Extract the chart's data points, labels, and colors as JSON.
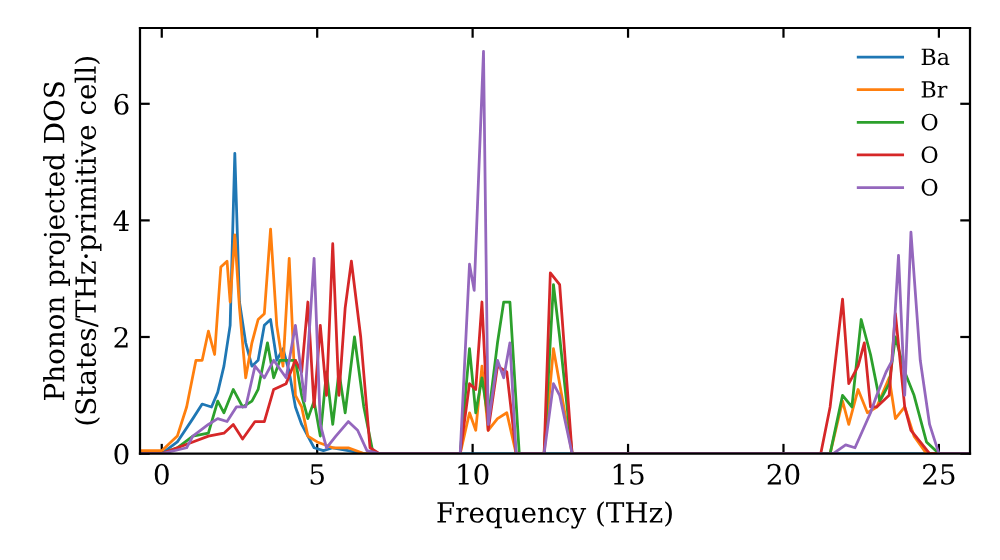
{
  "chart_data": {
    "type": "line",
    "xlabel": "Frequency (THz)",
    "ylabel": "Phonon projected DOS\n(States/THz·primitive cell)",
    "xlim": [
      -0.7,
      26
    ],
    "ylim": [
      0,
      7.3
    ],
    "xticks": [
      0,
      5,
      10,
      15,
      20,
      25
    ],
    "yticks": [
      0,
      2,
      4,
      6
    ],
    "grid": false,
    "legend": "top right",
    "marker": "none",
    "line_style": "solid",
    "series": [
      {
        "name": "Ba",
        "color": "#1f77b4",
        "x": [
          -0.7,
          0,
          0.5,
          1,
          1.3,
          1.6,
          1.8,
          2.0,
          2.2,
          2.35,
          2.5,
          2.7,
          2.9,
          3.1,
          3.3,
          3.5,
          3.7,
          3.9,
          4.1,
          4.3,
          4.5,
          4.7,
          4.9,
          5.2,
          5.5,
          6.0,
          6.5,
          26
        ],
        "values": [
          0,
          0,
          0.2,
          0.6,
          0.85,
          0.8,
          1.05,
          1.5,
          2.2,
          5.15,
          2.6,
          1.9,
          1.5,
          1.6,
          2.2,
          2.3,
          1.6,
          1.8,
          1.4,
          0.8,
          0.5,
          0.3,
          0.1,
          0.05,
          0.1,
          0.05,
          0,
          0
        ]
      },
      {
        "name": "Br",
        "color": "#ff7f0e",
        "x": [
          -0.7,
          0,
          0.5,
          0.8,
          1.1,
          1.3,
          1.5,
          1.7,
          1.9,
          2.1,
          2.2,
          2.35,
          2.5,
          2.7,
          2.9,
          3.1,
          3.3,
          3.5,
          3.7,
          3.9,
          4.1,
          4.3,
          4.5,
          4.7,
          5.0,
          5.5,
          6.0,
          6.5,
          9.6,
          9.9,
          10.1,
          10.3,
          10.5,
          10.8,
          11.1,
          11.4,
          12.3,
          12.6,
          12.8,
          13.2,
          21.5,
          21.9,
          22.1,
          22.4,
          22.7,
          23.0,
          23.4,
          23.6,
          23.9,
          24.2,
          24.6,
          26
        ],
        "values": [
          0.05,
          0.05,
          0.3,
          0.8,
          1.6,
          1.6,
          2.1,
          1.7,
          3.2,
          3.3,
          2.6,
          3.75,
          2.5,
          1.3,
          1.9,
          2.3,
          2.4,
          3.85,
          2.2,
          1.5,
          3.35,
          1.0,
          0.8,
          0.3,
          0.2,
          0.1,
          0.1,
          0,
          0,
          0.7,
          0.4,
          1.5,
          0.4,
          0.6,
          0.7,
          0,
          0,
          1.8,
          1.2,
          0,
          0,
          0.9,
          0.5,
          1.1,
          0.7,
          0.8,
          1.3,
          0.6,
          0.8,
          0.3,
          0,
          0
        ]
      },
      {
        "name": "O",
        "color": "#2ca02c",
        "x": [
          -0.7,
          0,
          0.5,
          1,
          1.5,
          1.8,
          2.0,
          2.3,
          2.6,
          2.9,
          3.1,
          3.4,
          3.6,
          3.8,
          4.3,
          4.5,
          4.7,
          4.9,
          5.1,
          5.3,
          5.5,
          5.7,
          5.9,
          6.2,
          6.5,
          6.8,
          9.6,
          9.9,
          10.1,
          10.3,
          10.5,
          10.8,
          11.0,
          11.2,
          11.5,
          12.3,
          12.6,
          12.8,
          13.2,
          21.5,
          21.9,
          22.2,
          22.5,
          22.8,
          23.1,
          23.4,
          23.6,
          23.9,
          24.2,
          24.6,
          25,
          26
        ],
        "values": [
          0,
          0,
          0.1,
          0.3,
          0.35,
          0.9,
          0.7,
          1.1,
          0.8,
          0.9,
          1.1,
          1.9,
          1.3,
          1.6,
          1.6,
          1.0,
          0.6,
          0.9,
          0.3,
          1.4,
          0.5,
          1.4,
          0.7,
          2.0,
          0.8,
          0,
          0,
          1.8,
          0.7,
          1.3,
          0.6,
          1.9,
          2.6,
          2.6,
          0,
          0,
          2.9,
          2.0,
          0,
          0,
          1.0,
          0.8,
          2.3,
          1.7,
          0.9,
          1.2,
          2.0,
          1.4,
          1.0,
          0.2,
          0,
          0
        ]
      },
      {
        "name": "O",
        "color": "#d62728",
        "x": [
          -0.7,
          0,
          1,
          1.5,
          2.0,
          2.3,
          2.6,
          3.0,
          3.3,
          3.6,
          4.0,
          4.3,
          4.5,
          4.7,
          4.9,
          5.1,
          5.3,
          5.5,
          5.7,
          5.9,
          6.1,
          6.4,
          6.7,
          7,
          9.6,
          9.9,
          10.1,
          10.3,
          10.5,
          10.8,
          11.1,
          11.4,
          12.3,
          12.5,
          12.8,
          13.2,
          21.2,
          21.5,
          21.9,
          22.1,
          22.4,
          22.6,
          22.8,
          23.0,
          23.4,
          23.6,
          23.9,
          24.1,
          24.4,
          24.7,
          26
        ],
        "values": [
          0,
          0,
          0.2,
          0.3,
          0.35,
          0.5,
          0.25,
          0.55,
          0.55,
          1.1,
          1.2,
          1.6,
          1.4,
          2.6,
          0.8,
          2.2,
          1.0,
          3.6,
          1.0,
          2.5,
          3.3,
          2.0,
          0.1,
          0,
          0,
          1.2,
          1.1,
          2.6,
          0.4,
          1.5,
          1.4,
          0,
          0,
          3.1,
          2.9,
          0,
          0,
          0.8,
          2.65,
          1.2,
          1.5,
          1.9,
          0.8,
          0.8,
          1.0,
          2.4,
          0.8,
          0.4,
          0.2,
          0,
          0
        ]
      },
      {
        "name": "O",
        "color": "#9467bd",
        "x": [
          -0.7,
          0,
          0.8,
          1.0,
          1.5,
          1.8,
          2.1,
          2.4,
          2.7,
          3.0,
          3.3,
          3.6,
          4.0,
          4.3,
          4.6,
          4.9,
          5.1,
          5.3,
          5.6,
          6.0,
          6.3,
          6.6,
          7,
          9.6,
          9.9,
          10.05,
          10.35,
          10.5,
          10.8,
          11.0,
          11.2,
          11.4,
          12.3,
          12.6,
          12.8,
          13.2,
          21.6,
          22.0,
          22.3,
          22.8,
          23.0,
          23.3,
          23.5,
          23.7,
          23.9,
          24.1,
          24.4,
          24.7,
          25.0,
          26
        ],
        "values": [
          0,
          0,
          0.1,
          0.3,
          0.5,
          0.6,
          0.55,
          0.8,
          0.8,
          1.5,
          1.3,
          1.6,
          1.3,
          2.2,
          0.9,
          3.35,
          0.5,
          0.1,
          0.3,
          0.55,
          0.4,
          0.05,
          0,
          0,
          3.25,
          2.8,
          6.9,
          0.5,
          1.6,
          1.3,
          1.9,
          0,
          0,
          1.2,
          1.0,
          0,
          0,
          0.15,
          0.1,
          0.7,
          1.0,
          1.4,
          1.6,
          3.4,
          1.0,
          3.8,
          1.6,
          0.5,
          0,
          0
        ]
      }
    ]
  }
}
